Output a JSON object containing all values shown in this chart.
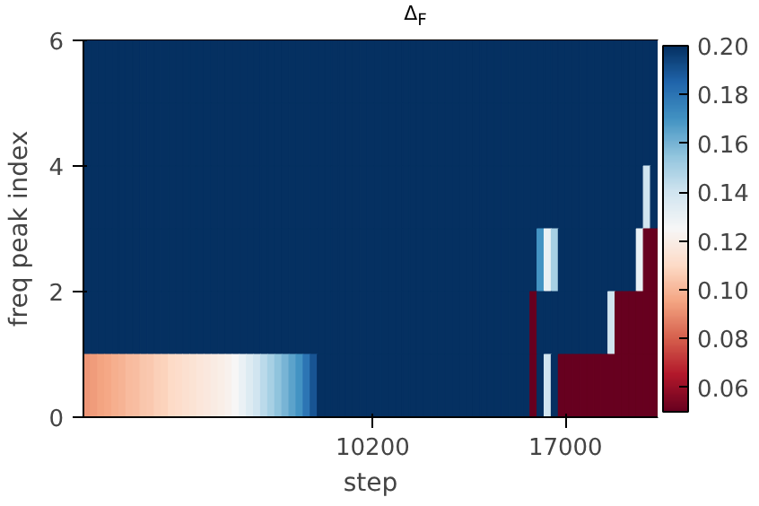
{
  "chart_data": {
    "type": "heatmap",
    "title": "Δ$_{F}$",
    "xlabel": "step",
    "ylabel": "freq peak index",
    "x": [
      125,
      375,
      625,
      875,
      1125,
      1375,
      1625,
      1875,
      2125,
      2375,
      2625,
      2875,
      3125,
      3375,
      3625,
      3875,
      4125,
      4375,
      4625,
      4875,
      5125,
      5375,
      5625,
      5875,
      6125,
      6375,
      6625,
      6875,
      7125,
      7375,
      7625,
      7875,
      8125,
      8375,
      8625,
      8875,
      9125,
      9375,
      9625,
      9875,
      10125,
      10375,
      10625,
      10875,
      11125,
      11375,
      11625,
      11875,
      12125,
      12375,
      12625,
      12875,
      13125,
      13375,
      13625,
      13875,
      14125,
      14375,
      14625,
      14875,
      15125,
      15375,
      15625,
      15875,
      16125,
      16375,
      16625,
      16875,
      17125,
      17375,
      17625,
      17875,
      18125,
      18375,
      18625,
      18875,
      19125,
      19375,
      19625,
      19875,
      20125
    ],
    "xlim": [
      0,
      20250
    ],
    "xticks": [
      10200,
      17000
    ],
    "ylim": [
      0,
      6
    ],
    "yticks": [
      0,
      2,
      4,
      6
    ],
    "clim": [
      0.05,
      0.2
    ],
    "cticks": [
      0.06,
      0.08,
      {
        "value": 0.1,
        "label": "0.10"
      },
      0.12,
      0.14,
      0.16,
      0.18,
      {
        "value": 0.2,
        "label": "0.20"
      }
    ],
    "cells": [
      [
        0.2,
        0.2,
        0.2,
        0.2,
        0.2,
        0.2,
        0.2,
        0.2,
        0.2,
        0.2,
        0.2,
        0.2,
        0.2,
        0.2,
        0.2,
        0.2,
        0.2,
        0.2,
        0.2,
        0.2,
        0.2,
        0.2,
        0.2,
        0.2,
        0.2,
        0.2,
        0.2,
        0.2,
        0.2,
        0.2,
        0.2,
        0.2,
        0.2,
        0.2,
        0.2,
        0.2,
        0.2,
        0.2,
        0.2,
        0.2,
        0.2,
        0.2,
        0.2,
        0.2,
        0.2,
        0.2,
        0.2,
        0.2,
        0.2,
        0.2,
        0.2,
        0.2,
        0.2,
        0.2,
        0.2,
        0.2,
        0.2,
        0.2,
        0.2,
        0.2,
        0.2,
        0.2,
        0.2,
        0.2,
        0.2,
        0.2,
        0.2,
        0.2,
        0.2,
        0.2,
        0.2,
        0.2,
        0.2,
        0.2,
        0.2,
        0.2,
        0.2,
        0.2,
        0.2,
        0.2,
        0.2
      ],
      [
        0.2,
        0.2,
        0.2,
        0.2,
        0.2,
        0.2,
        0.2,
        0.2,
        0.2,
        0.2,
        0.2,
        0.2,
        0.2,
        0.2,
        0.2,
        0.2,
        0.2,
        0.2,
        0.2,
        0.2,
        0.2,
        0.2,
        0.2,
        0.2,
        0.2,
        0.2,
        0.2,
        0.2,
        0.2,
        0.2,
        0.2,
        0.2,
        0.2,
        0.2,
        0.2,
        0.2,
        0.2,
        0.2,
        0.2,
        0.2,
        0.2,
        0.2,
        0.2,
        0.2,
        0.2,
        0.2,
        0.2,
        0.2,
        0.2,
        0.2,
        0.2,
        0.2,
        0.2,
        0.2,
        0.2,
        0.2,
        0.2,
        0.2,
        0.2,
        0.2,
        0.2,
        0.2,
        0.2,
        0.2,
        0.2,
        0.2,
        0.2,
        0.2,
        0.2,
        0.2,
        0.2,
        0.2,
        0.2,
        0.2,
        0.2,
        0.2,
        0.2,
        0.2,
        0.2,
        0.2,
        0.2
      ],
      [
        0.2,
        0.2,
        0.2,
        0.2,
        0.2,
        0.2,
        0.2,
        0.2,
        0.2,
        0.2,
        0.2,
        0.2,
        0.2,
        0.2,
        0.2,
        0.2,
        0.2,
        0.2,
        0.2,
        0.2,
        0.2,
        0.2,
        0.2,
        0.2,
        0.2,
        0.2,
        0.2,
        0.2,
        0.2,
        0.2,
        0.2,
        0.2,
        0.2,
        0.2,
        0.2,
        0.2,
        0.2,
        0.2,
        0.2,
        0.2,
        0.2,
        0.2,
        0.2,
        0.2,
        0.2,
        0.2,
        0.2,
        0.2,
        0.2,
        0.2,
        0.2,
        0.2,
        0.2,
        0.2,
        0.2,
        0.2,
        0.2,
        0.2,
        0.2,
        0.2,
        0.2,
        0.2,
        0.2,
        0.2,
        0.2,
        0.2,
        0.2,
        0.2,
        0.2,
        0.2,
        0.2,
        0.2,
        0.2,
        0.2,
        0.2,
        0.2,
        0.2,
        0.2,
        0.2,
        0.14,
        0.2
      ],
      [
        0.2,
        0.2,
        0.2,
        0.2,
        0.2,
        0.2,
        0.2,
        0.2,
        0.2,
        0.2,
        0.2,
        0.2,
        0.2,
        0.2,
        0.2,
        0.2,
        0.2,
        0.2,
        0.2,
        0.2,
        0.2,
        0.2,
        0.2,
        0.2,
        0.2,
        0.2,
        0.2,
        0.2,
        0.2,
        0.2,
        0.2,
        0.2,
        0.2,
        0.2,
        0.2,
        0.2,
        0.2,
        0.2,
        0.2,
        0.2,
        0.2,
        0.2,
        0.2,
        0.2,
        0.2,
        0.2,
        0.2,
        0.2,
        0.2,
        0.2,
        0.2,
        0.2,
        0.2,
        0.2,
        0.2,
        0.2,
        0.2,
        0.2,
        0.2,
        0.2,
        0.2,
        0.2,
        0.2,
        0.2,
        0.17,
        0.13,
        0.15,
        0.2,
        0.2,
        0.2,
        0.2,
        0.2,
        0.2,
        0.2,
        0.2,
        0.2,
        0.2,
        0.2,
        0.13,
        0.05,
        0.05
      ],
      [
        0.2,
        0.2,
        0.2,
        0.2,
        0.2,
        0.2,
        0.2,
        0.2,
        0.2,
        0.2,
        0.2,
        0.2,
        0.2,
        0.2,
        0.2,
        0.2,
        0.2,
        0.2,
        0.2,
        0.2,
        0.2,
        0.2,
        0.2,
        0.2,
        0.2,
        0.2,
        0.2,
        0.2,
        0.2,
        0.2,
        0.2,
        0.2,
        0.2,
        0.2,
        0.2,
        0.2,
        0.2,
        0.2,
        0.2,
        0.2,
        0.2,
        0.2,
        0.2,
        0.2,
        0.2,
        0.2,
        0.2,
        0.2,
        0.2,
        0.2,
        0.2,
        0.2,
        0.2,
        0.2,
        0.2,
        0.2,
        0.2,
        0.2,
        0.2,
        0.2,
        0.2,
        0.2,
        0.2,
        0.05,
        0.2,
        0.2,
        0.2,
        0.2,
        0.2,
        0.2,
        0.2,
        0.2,
        0.2,
        0.2,
        0.14,
        0.05,
        0.05,
        0.05,
        0.05,
        0.05,
        0.05
      ],
      [
        0.092,
        0.093,
        0.095,
        0.096,
        0.098,
        0.099,
        0.101,
        0.102,
        0.104,
        0.105,
        0.107,
        0.108,
        0.11,
        0.111,
        0.113,
        0.114,
        0.116,
        0.117,
        0.119,
        0.12,
        0.122,
        0.125,
        0.13,
        0.135,
        0.14,
        0.145,
        0.15,
        0.155,
        0.16,
        0.165,
        0.17,
        0.18,
        0.19,
        0.2,
        0.2,
        0.2,
        0.2,
        0.2,
        0.2,
        0.2,
        0.2,
        0.2,
        0.2,
        0.2,
        0.2,
        0.2,
        0.2,
        0.2,
        0.2,
        0.2,
        0.2,
        0.2,
        0.2,
        0.2,
        0.2,
        0.2,
        0.2,
        0.2,
        0.2,
        0.2,
        0.2,
        0.2,
        0.2,
        0.05,
        0.2,
        0.14,
        0.2,
        0.05,
        0.05,
        0.05,
        0.05,
        0.05,
        0.05,
        0.05,
        0.05,
        0.05,
        0.05,
        0.05,
        0.05,
        0.05,
        0.05
      ]
    ]
  }
}
